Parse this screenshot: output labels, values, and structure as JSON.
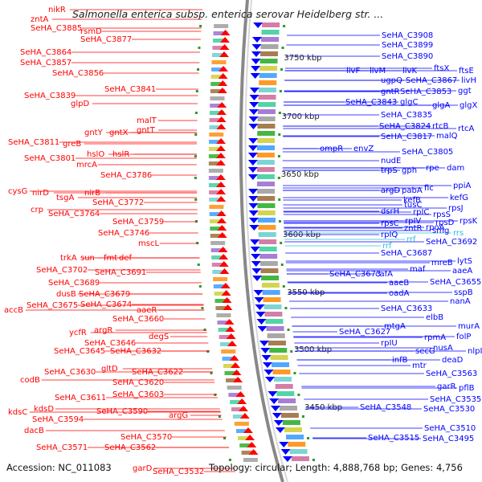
{
  "title": "Salmonella enterica subsp. enterica serovar Heidelberg str. ...",
  "footer": {
    "accession": "Accession: NC_011083",
    "topology": "Topology: circular; Length: 4,888,768 bp; Genes: 4,756"
  },
  "colors": {
    "reverse_strand": "#ff0000",
    "forward_strand": "#0000ff",
    "rna": "#33bbdd",
    "backbone": "#888888",
    "tick": "#2a9a2a"
  },
  "kbp_ticks": [
    "3750 kbp",
    "3700 kbp",
    "3650 kbp",
    "3600 kbp",
    "3550 kbp",
    "3500 kbp",
    "3450 kbp"
  ],
  "left_labels": [
    {
      "text": "nikR"
    },
    {
      "text": "zntA"
    },
    {
      "text": "SeHA_C3885"
    },
    {
      "text": "rsmD"
    },
    {
      "text": "SeHA_C3877"
    },
    {
      "text": "SeHA_C3864"
    },
    {
      "text": "SeHA_C3857"
    },
    {
      "text": "SeHA_C3856"
    },
    {
      "text": "SeHA_C3841"
    },
    {
      "text": "SeHA_C3839"
    },
    {
      "text": "glpD"
    },
    {
      "text": "malT"
    },
    {
      "text": "gntY"
    },
    {
      "text": "gntX"
    },
    {
      "text": "gntT"
    },
    {
      "text": "SeHA_C3811"
    },
    {
      "text": "greB"
    },
    {
      "text": "hslO"
    },
    {
      "text": "hslR"
    },
    {
      "text": "SeHA_C3801"
    },
    {
      "text": "mrcA"
    },
    {
      "text": "SeHA_C3786"
    },
    {
      "text": "cysG"
    },
    {
      "text": "nirD"
    },
    {
      "text": "nirB"
    },
    {
      "text": "tsgA"
    },
    {
      "text": "SeHA_C3772"
    },
    {
      "text": "crp"
    },
    {
      "text": "SeHA_C3764"
    },
    {
      "text": "SeHA_C3759"
    },
    {
      "text": "SeHA_C3746"
    },
    {
      "text": "mscL"
    },
    {
      "text": "trkA"
    },
    {
      "text": "sun"
    },
    {
      "text": "fmt"
    },
    {
      "text": "def"
    },
    {
      "text": "SeHA_C3702"
    },
    {
      "text": "SeHA_C3691"
    },
    {
      "text": "SeHA_C3689"
    },
    {
      "text": "dusB"
    },
    {
      "text": "SeHA_C3679"
    },
    {
      "text": "accB"
    },
    {
      "text": "SeHA_C3675"
    },
    {
      "text": "SeHA_C3674"
    },
    {
      "text": "aaeR"
    },
    {
      "text": "SeHA_C3660"
    },
    {
      "text": "ycfR"
    },
    {
      "text": "argR"
    },
    {
      "text": "degS"
    },
    {
      "text": "SeHA_C3646"
    },
    {
      "text": "SeHA_C3645"
    },
    {
      "text": "SeHA_C3632"
    },
    {
      "text": "gltD"
    },
    {
      "text": "SeHA_C3630"
    },
    {
      "text": "SeHA_C3622"
    },
    {
      "text": "codB"
    },
    {
      "text": "SeHA_C3620"
    },
    {
      "text": "SeHA_C3603"
    },
    {
      "text": "SeHA_C3611"
    },
    {
      "text": "kdsC"
    },
    {
      "text": "kdsD"
    },
    {
      "text": "SeHA_C3590"
    },
    {
      "text": "SeHA_C3594"
    },
    {
      "text": "argG"
    },
    {
      "text": "dacB"
    },
    {
      "text": "SeHA_C3570"
    },
    {
      "text": "SeHA_C3571"
    },
    {
      "text": "SeHA_C3562"
    },
    {
      "text": "garD"
    },
    {
      "text": "SeHA_C3532"
    }
  ],
  "right_labels": [
    {
      "text": "SeHA_C3908"
    },
    {
      "text": "SeHA_C3899"
    },
    {
      "text": "SeHA_C3890"
    },
    {
      "text": "ftsX"
    },
    {
      "text": "ftsE"
    },
    {
      "text": "livF"
    },
    {
      "text": "livM"
    },
    {
      "text": "livK"
    },
    {
      "text": "livH"
    },
    {
      "text": "ugpQ"
    },
    {
      "text": "SeHA_C3867"
    },
    {
      "text": "ggt"
    },
    {
      "text": "gntR"
    },
    {
      "text": "SeHA_C3853"
    },
    {
      "text": "SeHA_C3843"
    },
    {
      "text": "glgC"
    },
    {
      "text": "glgA"
    },
    {
      "text": "glgX"
    },
    {
      "text": "SeHA_C3835"
    },
    {
      "text": "SeHA_C3824"
    },
    {
      "text": "rtcB"
    },
    {
      "text": "rtcA"
    },
    {
      "text": "SeHA_C3817"
    },
    {
      "text": "malQ"
    },
    {
      "text": "ompR"
    },
    {
      "text": "envZ"
    },
    {
      "text": "SeHA_C3805"
    },
    {
      "text": "nudE"
    },
    {
      "text": "trpS"
    },
    {
      "text": "gph"
    },
    {
      "text": "rpe"
    },
    {
      "text": "dam"
    },
    {
      "text": "argD"
    },
    {
      "text": "pabA"
    },
    {
      "text": "fic"
    },
    {
      "text": "ppiA"
    },
    {
      "text": "kefB"
    },
    {
      "text": "kefG"
    },
    {
      "text": "dsrH"
    },
    {
      "text": "tusC"
    },
    {
      "text": "rpIC"
    },
    {
      "text": "rpsJ"
    },
    {
      "text": "rpsC"
    },
    {
      "text": "rpIV"
    },
    {
      "text": "rpsS"
    },
    {
      "text": "rpsD"
    },
    {
      "text": "rpsK"
    },
    {
      "text": "rpIQ"
    },
    {
      "text": "zntR"
    },
    {
      "text": "rpoA"
    },
    {
      "text": "smg"
    },
    {
      "text": "rrs"
    },
    {
      "text": "rrf"
    },
    {
      "text": "rrf"
    },
    {
      "text": "SeHA_C3692"
    },
    {
      "text": "SeHA_C3687"
    },
    {
      "text": "mreB"
    },
    {
      "text": "lytS"
    },
    {
      "text": "SeHA_C3673"
    },
    {
      "text": "cafA"
    },
    {
      "text": "maf"
    },
    {
      "text": "aaeA"
    },
    {
      "text": "aaeB"
    },
    {
      "text": "SeHA_C3655"
    },
    {
      "text": "oadA"
    },
    {
      "text": "sspB"
    },
    {
      "text": "nanA"
    },
    {
      "text": "SeHA_C3633"
    },
    {
      "text": "elbB"
    },
    {
      "text": "mtgA"
    },
    {
      "text": "SeHA_C3627"
    },
    {
      "text": "murA"
    },
    {
      "text": "rpmA"
    },
    {
      "text": "folP"
    },
    {
      "text": "rpIU"
    },
    {
      "text": "nusA"
    },
    {
      "text": "secG"
    },
    {
      "text": "nlpI"
    },
    {
      "text": "infB"
    },
    {
      "text": "deaD"
    },
    {
      "text": "mtr"
    },
    {
      "text": "SeHA_C3563"
    },
    {
      "text": "garR"
    },
    {
      "text": "pflB"
    },
    {
      "text": "SeHA_C3535"
    },
    {
      "text": "SeHA_C3548"
    },
    {
      "text": "SeHA_C3530"
    },
    {
      "text": "SeHA_C3510"
    },
    {
      "text": "SeHA_C3515"
    },
    {
      "text": "SeHA_C3495"
    }
  ]
}
